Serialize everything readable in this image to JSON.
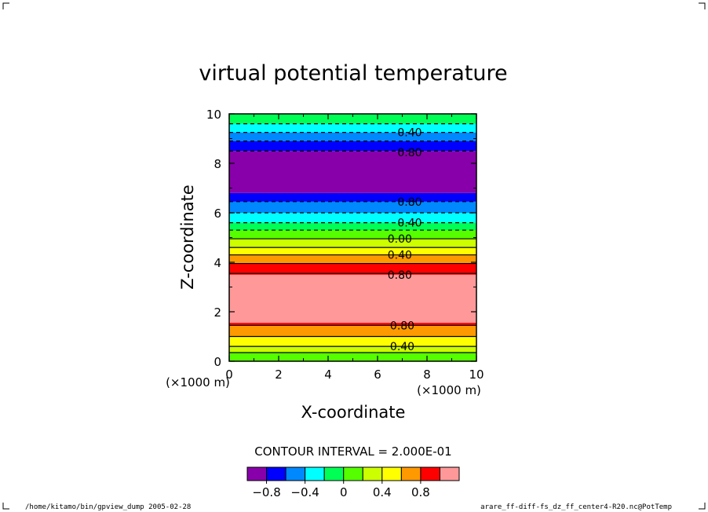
{
  "chart_data": {
    "type": "contour",
    "title": "virtual potential temperature",
    "xlabel": "X-coordinate",
    "ylabel": "Z-coordinate",
    "x_unit_label": "(×1000 m)",
    "y_unit_label": "(×1000 m)",
    "xlim": [
      0,
      10
    ],
    "ylim": [
      0,
      10
    ],
    "x_ticks": [
      0,
      2,
      4,
      6,
      8,
      10
    ],
    "y_ticks": [
      0,
      2,
      4,
      6,
      8,
      10
    ],
    "x_tick_labels": [
      "0",
      "2",
      "4",
      "6",
      "8",
      "10"
    ],
    "y_tick_labels": [
      "0",
      "2",
      "4",
      "6",
      "8",
      "10"
    ],
    "contour_interval_text": "CONTOUR INTERVAL = 2.000E-01",
    "bands": [
      {
        "z0": 0.0,
        "z1": 0.35,
        "color": "#55ff00"
      },
      {
        "z0": 0.35,
        "z1": 0.6,
        "color": "#ccff00"
      },
      {
        "z0": 0.6,
        "z1": 1.0,
        "color": "#ffff00"
      },
      {
        "z0": 1.0,
        "z1": 1.45,
        "color": "#ff9900"
      },
      {
        "z0": 1.45,
        "z1": 3.55,
        "color": "#ff0000"
      },
      {
        "z0": 1.55,
        "z1": 3.5,
        "color": "#ff9999"
      },
      {
        "z0": 3.55,
        "z1": 3.95,
        "color": "#ff0000"
      },
      {
        "z0": 3.95,
        "z1": 4.3,
        "color": "#ff9900"
      },
      {
        "z0": 4.3,
        "z1": 4.6,
        "color": "#ffff00"
      },
      {
        "z0": 4.6,
        "z1": 4.95,
        "color": "#ccff00"
      },
      {
        "z0": 4.95,
        "z1": 5.3,
        "color": "#55ff00"
      },
      {
        "z0": 5.3,
        "z1": 5.6,
        "color": "#00ff55"
      },
      {
        "z0": 5.6,
        "z1": 6.0,
        "color": "#00ffff"
      },
      {
        "z0": 6.0,
        "z1": 6.45,
        "color": "#0088ff"
      },
      {
        "z0": 6.45,
        "z1": 6.8,
        "color": "#0000ff"
      },
      {
        "z0": 6.8,
        "z1": 8.5,
        "color": "#8800aa"
      },
      {
        "z0": 8.5,
        "z1": 8.9,
        "color": "#0000ff"
      },
      {
        "z0": 8.9,
        "z1": 9.25,
        "color": "#0088ff"
      },
      {
        "z0": 9.25,
        "z1": 9.6,
        "color": "#00ffff"
      },
      {
        "z0": 9.6,
        "z1": 10.0,
        "color": "#00ff55"
      }
    ],
    "contours": [
      {
        "z": 0.35,
        "dashed": false
      },
      {
        "z": 0.6,
        "dashed": false
      },
      {
        "z": 1.0,
        "dashed": false
      },
      {
        "z": 1.45,
        "dashed": false
      },
      {
        "z": 3.55,
        "dashed": false
      },
      {
        "z": 3.95,
        "dashed": false
      },
      {
        "z": 4.3,
        "dashed": false
      },
      {
        "z": 4.6,
        "dashed": false
      },
      {
        "z": 4.95,
        "dashed": false
      },
      {
        "z": 5.3,
        "dashed": true
      },
      {
        "z": 5.6,
        "dashed": true
      },
      {
        "z": 6.0,
        "dashed": true
      },
      {
        "z": 6.45,
        "dashed": true
      },
      {
        "z": 8.5,
        "dashed": true
      },
      {
        "z": 8.9,
        "dashed": true
      },
      {
        "z": 9.25,
        "dashed": true
      },
      {
        "z": 9.6,
        "dashed": true
      }
    ],
    "contour_labels": [
      {
        "text": "0.40",
        "x": 7.3,
        "z": 9.25
      },
      {
        "text": "0.80",
        "x": 7.3,
        "z": 8.45
      },
      {
        "text": "0.80",
        "x": 7.3,
        "z": 6.45
      },
      {
        "text": "0.40",
        "x": 7.3,
        "z": 5.6
      },
      {
        "text": "0.00",
        "x": 6.9,
        "z": 4.95
      },
      {
        "text": "0.40",
        "x": 6.9,
        "z": 4.3
      },
      {
        "text": "0.80",
        "x": 6.9,
        "z": 3.5
      },
      {
        "text": "0.80",
        "x": 7.0,
        "z": 1.45
      },
      {
        "text": "0.40",
        "x": 7.0,
        "z": 0.6
      }
    ],
    "colorbar": {
      "colors": [
        "#8800aa",
        "#0000ff",
        "#0088ff",
        "#00ffff",
        "#00ff55",
        "#55ff00",
        "#ccff00",
        "#ffff00",
        "#ff9900",
        "#ff0000",
        "#ff9999"
      ],
      "labels": [
        "−0.8",
        "−0.4",
        "0",
        "0.4",
        "0.8"
      ],
      "label_positions": [
        1,
        3,
        5,
        7,
        9
      ]
    }
  },
  "footer": {
    "left": "/home/kitamo/bin/gpview_dump  2005-02-28",
    "right": "arare_ff-diff-fs_dz_ff_center4-R20.nc@PotTemp"
  }
}
